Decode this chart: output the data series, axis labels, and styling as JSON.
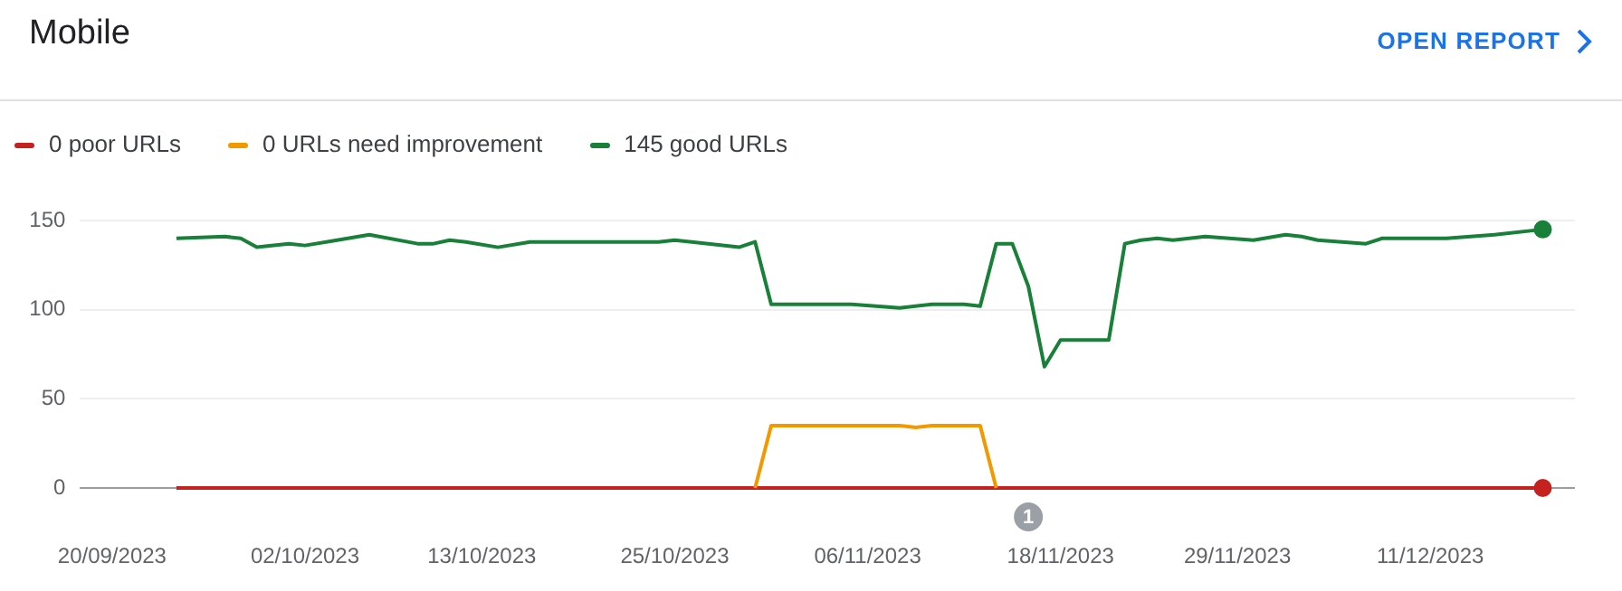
{
  "chart_data": {
    "type": "line",
    "title": "Mobile",
    "annotations": [
      "OPEN REPORT",
      {
        "text": "1",
        "x": "2023-11-16",
        "y": 0
      }
    ],
    "series": [
      {
        "name": "0 poor URLs",
        "color": "#c5221f",
        "x": [
          "2023-09-24",
          "2023-12-18"
        ],
        "values": [
          0,
          0
        ]
      },
      {
        "name": "0 URLs need improvement",
        "color": "#f29900",
        "x": [
          "2023-10-30",
          "2023-10-31",
          "2023-11-08",
          "2023-11-09",
          "2023-11-10",
          "2023-11-13",
          "2023-11-14"
        ],
        "values": [
          0,
          35,
          35,
          34,
          35,
          35,
          0
        ]
      },
      {
        "name": "145 good URLs",
        "color": "#188038",
        "x": [
          "2023-09-24",
          "2023-09-27",
          "2023-09-28",
          "2023-09-29",
          "2023-10-01",
          "2023-10-02",
          "2023-10-04",
          "2023-10-06",
          "2023-10-09",
          "2023-10-10",
          "2023-10-11",
          "2023-10-12",
          "2023-10-14",
          "2023-10-16",
          "2023-10-24",
          "2023-10-25",
          "2023-10-29",
          "2023-10-30",
          "2023-10-31",
          "2023-11-02",
          "2023-11-05",
          "2023-11-08",
          "2023-11-10",
          "2023-11-12",
          "2023-11-13",
          "2023-11-14",
          "2023-11-15",
          "2023-11-16",
          "2023-11-17",
          "2023-11-18",
          "2023-11-21",
          "2023-11-22",
          "2023-11-23",
          "2023-11-24",
          "2023-11-25",
          "2023-11-27",
          "2023-11-30",
          "2023-12-02",
          "2023-12-03",
          "2023-12-04",
          "2023-12-07",
          "2023-12-08",
          "2023-12-12",
          "2023-12-15",
          "2023-12-18"
        ],
        "values": [
          140,
          141,
          140,
          135,
          137,
          136,
          139,
          142,
          137,
          137,
          139,
          138,
          135,
          138,
          138,
          139,
          135,
          138,
          103,
          103,
          103,
          101,
          103,
          103,
          102,
          137,
          137,
          113,
          68,
          83,
          83,
          137,
          139,
          140,
          139,
          141,
          139,
          142,
          141,
          139,
          137,
          140,
          140,
          142,
          145
        ]
      }
    ],
    "xlim": [
      "2023-09-18",
      "2023-12-20"
    ],
    "xticks": [
      {
        "value": "2023-09-20",
        "label": "20/09/2023"
      },
      {
        "value": "2023-10-02",
        "label": "02/10/2023"
      },
      {
        "value": "2023-10-13",
        "label": "13/10/2023"
      },
      {
        "value": "2023-10-25",
        "label": "25/10/2023"
      },
      {
        "value": "2023-11-06",
        "label": "06/11/2023"
      },
      {
        "value": "2023-11-18",
        "label": "18/11/2023"
      },
      {
        "value": "2023-11-29",
        "label": "29/11/2023"
      },
      {
        "value": "2023-12-11",
        "label": "11/12/2023"
      }
    ],
    "ylim": [
      0,
      150
    ],
    "yticks": [
      0,
      50,
      100,
      150
    ],
    "grid": "y",
    "legend": "top left",
    "line_style": "solid"
  }
}
